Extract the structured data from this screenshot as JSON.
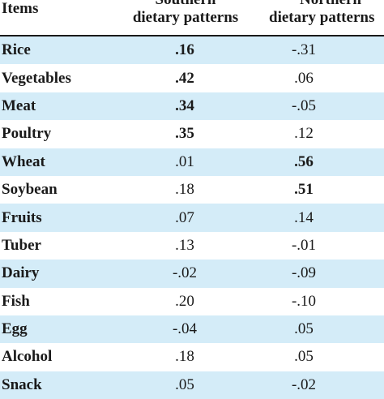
{
  "header": {
    "items": "Items",
    "southern_line1": "Southern",
    "southern_line2": "dietary patterns",
    "northern_line1": "Northern",
    "northern_line2": "dietary patterns"
  },
  "rows": [
    {
      "item": "Rice",
      "southern": ".16",
      "southern_bold": true,
      "northern": "-.31",
      "northern_bold": false
    },
    {
      "item": "Vegetables",
      "southern": ".42",
      "southern_bold": true,
      "northern": ".06",
      "northern_bold": false
    },
    {
      "item": "Meat",
      "southern": ".34",
      "southern_bold": true,
      "northern": "-.05",
      "northern_bold": false
    },
    {
      "item": "Poultry",
      "southern": ".35",
      "southern_bold": true,
      "northern": ".12",
      "northern_bold": false
    },
    {
      "item": "Wheat",
      "southern": ".01",
      "southern_bold": false,
      "northern": ".56",
      "northern_bold": true
    },
    {
      "item": "Soybean",
      "southern": ".18",
      "southern_bold": false,
      "northern": ".51",
      "northern_bold": true
    },
    {
      "item": "Fruits",
      "southern": ".07",
      "southern_bold": false,
      "northern": ".14",
      "northern_bold": false
    },
    {
      "item": "Tuber",
      "southern": ".13",
      "southern_bold": false,
      "northern": "-.01",
      "northern_bold": false
    },
    {
      "item": "Dairy",
      "southern": "-.02",
      "southern_bold": false,
      "northern": "-.09",
      "northern_bold": false
    },
    {
      "item": "Fish",
      "southern": ".20",
      "southern_bold": false,
      "northern": "-.10",
      "northern_bold": false
    },
    {
      "item": "Egg",
      "southern": "-.04",
      "southern_bold": false,
      "northern": ".05",
      "northern_bold": false
    },
    {
      "item": "Alcohol",
      "southern": ".18",
      "southern_bold": false,
      "northern": ".05",
      "northern_bold": false
    },
    {
      "item": "Snack",
      "southern": ".05",
      "southern_bold": false,
      "northern": "-.02",
      "northern_bold": false
    }
  ],
  "colors": {
    "stripe": "#d4ecf8",
    "text": "#1a1a1a"
  }
}
